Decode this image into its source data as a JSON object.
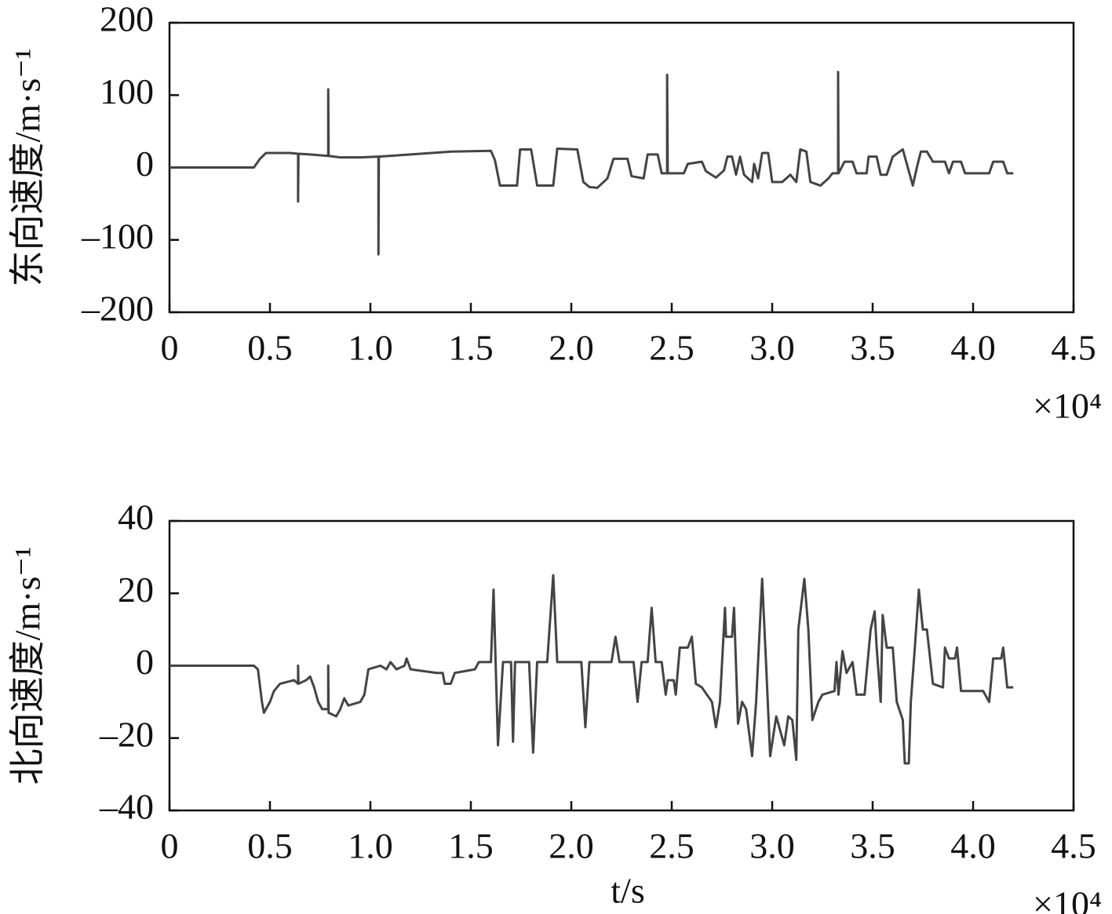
{
  "chart_data": [
    {
      "type": "line",
      "ylabel": "东向速度/m·s⁻¹",
      "x_multiplier": "×10⁴",
      "xlim": [
        0,
        4.5
      ],
      "xticks": [
        0,
        0.5,
        {
          "value": 1,
          "label": "1.0"
        },
        1.5,
        {
          "value": 2,
          "label": "2.0"
        },
        2.5,
        {
          "value": 3,
          "label": "3.0"
        },
        3.5,
        {
          "value": 4,
          "label": "4.0"
        },
        4.5
      ],
      "ylim": [
        -200,
        200
      ],
      "yticks": [
        {
          "value": -200,
          "label": "–200"
        },
        {
          "value": -100,
          "label": "–100"
        },
        0,
        100,
        200
      ],
      "grid": false,
      "x": [
        0,
        0.42,
        0.45,
        0.48,
        0.6,
        0.64,
        0.64,
        0.642,
        0.7,
        0.79,
        0.79,
        0.792,
        0.85,
        0.95,
        1.04,
        1.04,
        1.042,
        1.2,
        1.4,
        1.6,
        1.62,
        1.645,
        1.73,
        1.745,
        1.8,
        1.83,
        1.91,
        1.93,
        2.03,
        2.06,
        2.09,
        2.13,
        2.18,
        2.21,
        2.28,
        2.3,
        2.36,
        2.38,
        2.43,
        2.45,
        2.477,
        2.477,
        2.48,
        2.56,
        2.58,
        2.65,
        2.67,
        2.72,
        2.76,
        2.777,
        2.8,
        2.82,
        2.84,
        2.86,
        2.9,
        2.91,
        2.93,
        2.95,
        2.98,
        3,
        3.05,
        3.09,
        3.12,
        3.14,
        3.17,
        3.19,
        3.24,
        3.28,
        3.3,
        3.328,
        3.328,
        3.33,
        3.36,
        3.4,
        3.42,
        3.47,
        3.48,
        3.52,
        3.54,
        3.57,
        3.6,
        3.65,
        3.67,
        3.7,
        3.72,
        3.74,
        3.77,
        3.8,
        3.86,
        3.88,
        3.9,
        3.94,
        3.96,
        4.08,
        4.1,
        4.15,
        4.17,
        4.2
      ],
      "series": [
        {
          "color": "#444444",
          "values": [
            0,
            0,
            12,
            20,
            20,
            19,
            -47,
            19,
            18,
            16,
            108,
            16,
            14,
            14,
            15,
            -120,
            15,
            18,
            22,
            23,
            10,
            -25,
            -25,
            25,
            25,
            -25,
            -25,
            26,
            25,
            -20,
            -27,
            -28,
            -15,
            12,
            12,
            -12,
            -15,
            18,
            18,
            -8,
            -8,
            128,
            -8,
            -8,
            5,
            8,
            -5,
            -14,
            -4,
            15,
            15,
            -10,
            15,
            -10,
            -20,
            5,
            -15,
            20,
            20,
            -20,
            -20,
            -10,
            -20,
            25,
            22,
            -20,
            -25,
            -15,
            -8,
            -8,
            132,
            -8,
            8,
            8,
            -8,
            -8,
            15,
            15,
            -10,
            -10,
            15,
            25,
            5,
            -25,
            0,
            22,
            22,
            8,
            8,
            -8,
            8,
            8,
            -8,
            -8,
            8,
            8,
            -8,
            -8
          ]
        }
      ]
    },
    {
      "type": "line",
      "ylabel": "北向速度/m·s⁻¹",
      "xlabel": "t/s",
      "x_multiplier": "×10⁴",
      "xlim": [
        0,
        4.5
      ],
      "xticks": [
        0,
        0.5,
        {
          "value": 1,
          "label": "1.0"
        },
        1.5,
        {
          "value": 2,
          "label": "2.0"
        },
        2.5,
        {
          "value": 3,
          "label": "3.0"
        },
        3.5,
        {
          "value": 4,
          "label": "4.0"
        },
        4.5
      ],
      "ylim": [
        -40,
        40
      ],
      "yticks": [
        {
          "value": -40,
          "label": "–40"
        },
        {
          "value": -20,
          "label": "–20"
        },
        0,
        20,
        40
      ],
      "grid": false,
      "x": [
        0,
        0.42,
        0.44,
        0.46,
        0.47,
        0.5,
        0.52,
        0.55,
        0.62,
        0.64,
        0.64,
        0.642,
        0.68,
        0.7,
        0.72,
        0.74,
        0.76,
        0.79,
        0.79,
        0.792,
        0.83,
        0.85,
        0.87,
        0.89,
        0.95,
        0.97,
        0.99,
        1.05,
        1.08,
        1.1,
        1.13,
        1.17,
        1.18,
        1.2,
        1.33,
        1.36,
        1.37,
        1.4,
        1.42,
        1.52,
        1.54,
        1.6,
        1.613,
        1.635,
        1.66,
        1.7,
        1.71,
        1.72,
        1.79,
        1.81,
        1.83,
        1.88,
        1.91,
        1.93,
        2.05,
        2.07,
        2.09,
        2.2,
        2.22,
        2.24,
        2.31,
        2.33,
        2.35,
        2.38,
        2.4,
        2.42,
        2.45,
        2.47,
        2.48,
        2.51,
        2.52,
        2.54,
        2.58,
        2.6,
        2.62,
        2.65,
        2.7,
        2.72,
        2.74,
        2.765,
        2.77,
        2.8,
        2.81,
        2.83,
        2.85,
        2.87,
        2.9,
        2.92,
        2.95,
        2.97,
        2.99,
        3.02,
        3.06,
        3.08,
        3.1,
        3.12,
        3.13,
        3.16,
        3.18,
        3.2,
        3.23,
        3.25,
        3.31,
        3.32,
        3.33,
        3.35,
        3.37,
        3.4,
        3.42,
        3.46,
        3.49,
        3.51,
        3.52,
        3.54,
        3.55,
        3.57,
        3.6,
        3.62,
        3.65,
        3.66,
        3.68,
        3.69,
        3.71,
        3.73,
        3.75,
        3.77,
        3.8,
        3.85,
        3.86,
        3.88,
        3.91,
        3.92,
        3.94,
        4.05,
        4.08,
        4.1,
        4.14,
        4.15,
        4.17,
        4.2
      ],
      "series": [
        {
          "color": "#444444",
          "values": [
            0,
            0,
            -1,
            -10,
            -13,
            -10,
            -7,
            -5,
            -4,
            -5,
            0,
            -5,
            -4,
            -3,
            -6,
            -10,
            -12,
            -12,
            0,
            -13,
            -14,
            -12,
            -9,
            -11,
            -10,
            -8,
            -1,
            0,
            -1,
            1,
            -1,
            0,
            2,
            -1,
            -2,
            -2,
            -5,
            -5,
            -2,
            -1,
            1,
            1,
            21,
            -22,
            1,
            1,
            -21,
            1,
            1,
            -24,
            1,
            1,
            25,
            1,
            1,
            -17,
            1,
            1,
            8,
            1,
            1,
            -10,
            1,
            1,
            16,
            1,
            1,
            -8,
            -4,
            -4,
            -8,
            5,
            5,
            8,
            -5,
            -6,
            -10,
            -17,
            -10,
            16,
            8,
            8,
            16,
            -16,
            -10,
            -12,
            -25,
            -10,
            24,
            0,
            -25,
            -14,
            -22,
            -14,
            -15,
            -26,
            10,
            24,
            10,
            -15,
            -10,
            -8,
            -7,
            1,
            -8,
            4,
            -2,
            1,
            -8,
            -8,
            10,
            15,
            5,
            -10,
            14,
            5,
            5,
            -10,
            -15,
            -27,
            -27,
            -10,
            5,
            21,
            10,
            10,
            -5,
            -6,
            5,
            2,
            2,
            5,
            -7,
            -7,
            -10,
            2,
            2,
            5,
            -6,
            -6
          ]
        }
      ]
    }
  ]
}
